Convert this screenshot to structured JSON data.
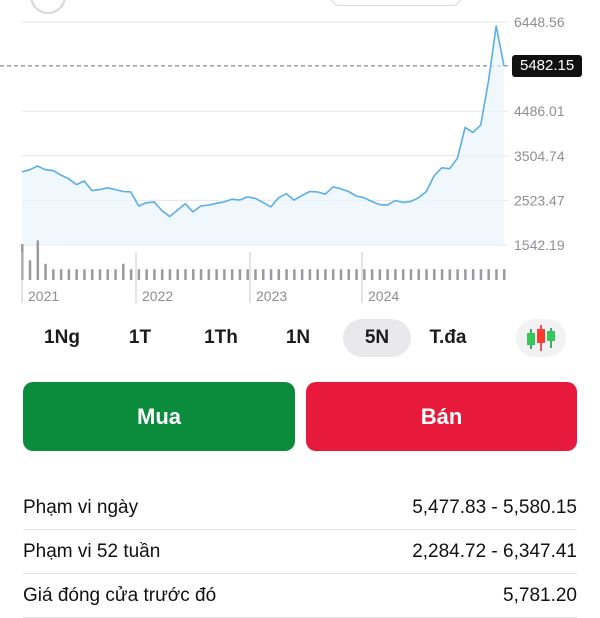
{
  "chart_data": {
    "type": "line",
    "period": "5N",
    "y_ticks": [
      "6448.56",
      "5482.15",
      "4486.01",
      "3504.74",
      "2523.47",
      "1542.19"
    ],
    "y_tick_values": [
      6448.56,
      5482.15,
      4486.01,
      3504.74,
      2523.47,
      1542.19
    ],
    "ylim": [
      1542.19,
      6448.56
    ],
    "x_ticks": [
      "2021",
      "2022",
      "2023",
      "2024"
    ],
    "current_price": "5482.15",
    "current_price_value": 5482.15,
    "series": [
      {
        "values": [
          3150,
          3200,
          3280,
          3200,
          3180,
          3080,
          3000,
          2870,
          2950,
          2740,
          2760,
          2800,
          2760,
          2720,
          2710,
          2400,
          2470,
          2490,
          2300,
          2170,
          2310,
          2450,
          2270,
          2400,
          2420,
          2460,
          2490,
          2550,
          2530,
          2600,
          2570,
          2480,
          2380,
          2580,
          2670,
          2530,
          2630,
          2720,
          2710,
          2660,
          2820,
          2780,
          2720,
          2620,
          2580,
          2500,
          2430,
          2420,
          2520,
          2480,
          2500,
          2580,
          2720,
          3060,
          3240,
          3220,
          3450,
          4130,
          4020,
          4180,
          5150,
          6360,
          5480
        ],
        "color": "#5aaee8"
      }
    ],
    "volume": [
      40,
      22,
      44,
      18,
      12,
      12,
      12,
      12,
      12,
      12,
      12,
      12,
      12,
      18,
      12,
      12,
      12,
      12,
      12,
      12,
      12,
      12,
      12,
      12,
      12,
      12,
      12,
      12,
      12,
      12,
      12,
      12,
      12,
      12,
      12,
      12,
      12,
      12,
      12,
      12,
      12,
      12,
      12,
      12,
      12,
      12,
      12,
      12,
      12,
      12,
      12,
      12,
      12,
      12,
      12,
      12,
      12,
      12,
      12,
      12,
      12,
      12,
      12
    ],
    "grid": true
  },
  "periods": [
    {
      "label": "1Ng",
      "active": false
    },
    {
      "label": "1T",
      "active": false
    },
    {
      "label": "1Th",
      "active": false
    },
    {
      "label": "1N",
      "active": false
    },
    {
      "label": "5N",
      "active": true
    },
    {
      "label": "T.đa",
      "active": false
    }
  ],
  "candle_icon": "candlestick-chart-icon",
  "buttons": {
    "buy": "Mua",
    "sell": "Bán"
  },
  "colors": {
    "buy": "#0b8c3c",
    "sell": "#e81a3b",
    "line": "#5aaee8"
  },
  "stats": [
    {
      "label": "Phạm vi ngày",
      "value": "5,477.83 - 5,580.15"
    },
    {
      "label": "Phạm vi 52 tuần",
      "value": "2,284.72 - 6,347.41"
    },
    {
      "label": "Giá đóng cửa trước đó",
      "value": "5,781.20"
    }
  ]
}
